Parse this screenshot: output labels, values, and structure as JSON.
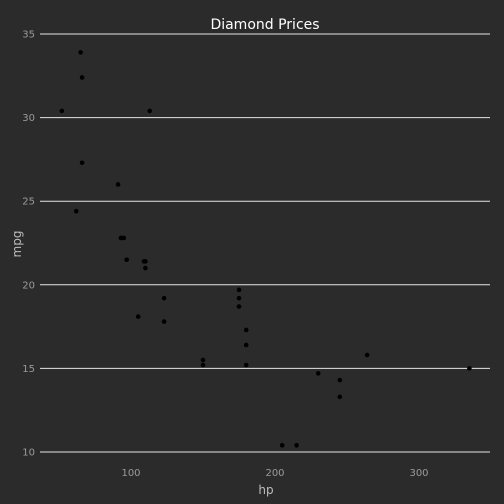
{
  "chart_data": {
    "type": "scatter",
    "title": "Diamond Prices",
    "xlabel": "hp",
    "ylabel": "mpg",
    "xlim": [
      40,
      345
    ],
    "ylim": [
      10,
      35
    ],
    "xticks": [
      100,
      200,
      300
    ],
    "yticks": [
      10,
      15,
      20,
      25,
      30,
      35
    ],
    "grid": {
      "horizontal": true,
      "vertical": false
    },
    "point_color": "#000000",
    "points": [
      {
        "x": 52,
        "y": 30.4
      },
      {
        "x": 62,
        "y": 24.4
      },
      {
        "x": 65,
        "y": 33.9
      },
      {
        "x": 66,
        "y": 32.4
      },
      {
        "x": 66,
        "y": 27.3
      },
      {
        "x": 91,
        "y": 26.0
      },
      {
        "x": 93,
        "y": 22.8
      },
      {
        "x": 95,
        "y": 22.8
      },
      {
        "x": 97,
        "y": 21.5
      },
      {
        "x": 105,
        "y": 18.1
      },
      {
        "x": 109,
        "y": 21.4
      },
      {
        "x": 110,
        "y": 21.0
      },
      {
        "x": 110,
        "y": 21.4
      },
      {
        "x": 113,
        "y": 30.4
      },
      {
        "x": 123,
        "y": 17.8
      },
      {
        "x": 123,
        "y": 19.2
      },
      {
        "x": 150,
        "y": 15.2
      },
      {
        "x": 150,
        "y": 15.5
      },
      {
        "x": 175,
        "y": 18.7
      },
      {
        "x": 175,
        "y": 19.2
      },
      {
        "x": 175,
        "y": 19.7
      },
      {
        "x": 180,
        "y": 16.4
      },
      {
        "x": 180,
        "y": 17.3
      },
      {
        "x": 180,
        "y": 15.2
      },
      {
        "x": 205,
        "y": 10.4
      },
      {
        "x": 215,
        "y": 10.4
      },
      {
        "x": 230,
        "y": 14.7
      },
      {
        "x": 245,
        "y": 13.3
      },
      {
        "x": 245,
        "y": 14.3
      },
      {
        "x": 264,
        "y": 15.8
      },
      {
        "x": 335,
        "y": 15.0
      }
    ]
  }
}
